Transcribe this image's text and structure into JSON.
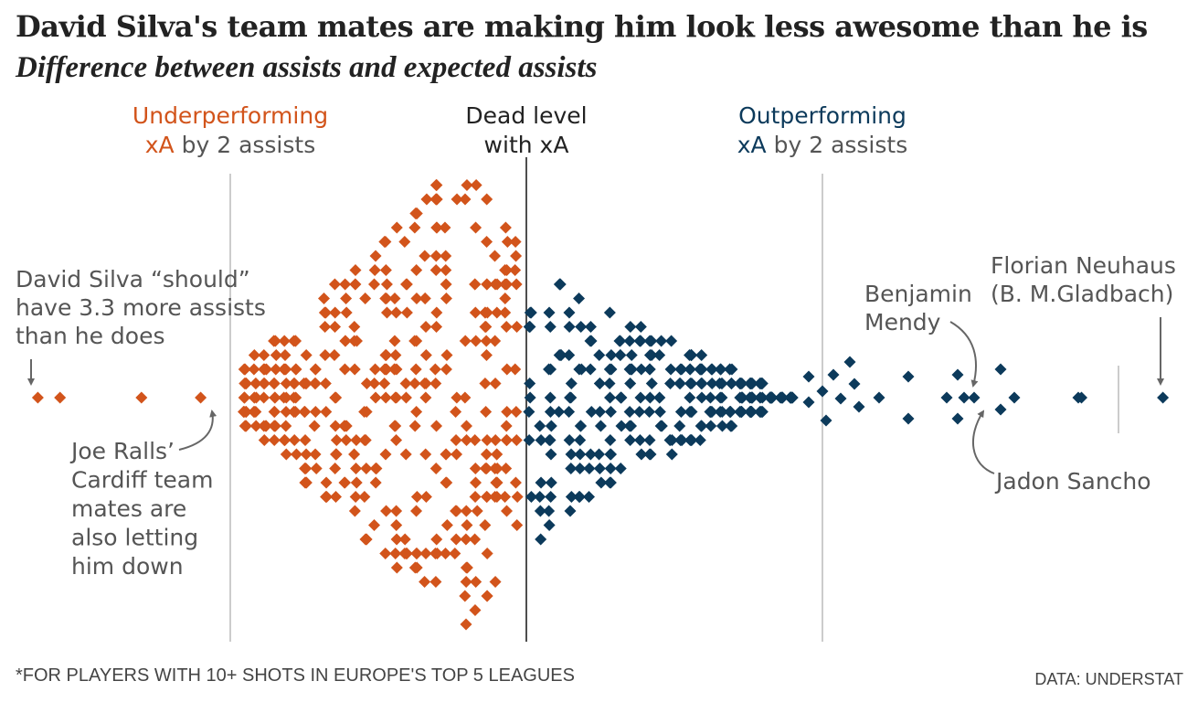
{
  "title": "David Silva's team mates are making him look less awesome than he is",
  "subtitle": "Difference between assists and expected assists",
  "footnote": "*FOR PLAYERS WITH 10+ SHOTS IN EUROPE'S TOP 5 LEAGUES",
  "source": "DATA: UNDERSTAT",
  "colors": {
    "under": "#d2541b",
    "over": "#0c3a5b",
    "zero_line": "#222222",
    "ref_line": "#cccccc",
    "label": "#555555"
  },
  "chart_data": {
    "type": "scatter",
    "subtype": "beeswarm",
    "x_range": [
      -3.5,
      5.2
    ],
    "reference_lines": [
      {
        "value": -2,
        "label_lines": [
          {
            "accent": "Underperforming",
            "rest": ""
          },
          {
            "accent": "xA",
            "rest": " by 2 assists"
          }
        ],
        "tone": "under"
      },
      {
        "value": 0,
        "label_lines": [
          {
            "accent": "",
            "rest": "Dead level"
          },
          {
            "accent": "",
            "rest": "with xA"
          }
        ],
        "tone": "zero"
      },
      {
        "value": 2,
        "label_lines": [
          {
            "accent": "Outperforming",
            "rest": ""
          },
          {
            "accent": "xA",
            "rest": " by 2 assists"
          }
        ],
        "tone": "over"
      }
    ],
    "annotations": [
      {
        "id": "silva",
        "lines": [
          "David Silva “should”",
          "have 3.3 more assists",
          "than he does"
        ],
        "x": -3.3
      },
      {
        "id": "ralls",
        "lines": [
          "Joe Ralls’",
          "Cardiff team",
          "mates are",
          "also letting",
          "him down"
        ],
        "x": -2.2
      },
      {
        "id": "mendy",
        "lines": [
          "Benjamin",
          "Mendy"
        ],
        "x": 3.0
      },
      {
        "id": "neuhaus",
        "lines": [
          "Florian Neuhaus",
          "(B. M.Gladbach)"
        ],
        "x": 4.3
      },
      {
        "id": "sancho",
        "lines": [
          "Jadon Sancho"
        ],
        "x": 3.1
      }
    ],
    "outliers": [
      -3.3,
      -3.15,
      -2.6,
      -2.2,
      3.75,
      4.3
    ],
    "points_under_count": 390,
    "points_over_count": 300
  }
}
